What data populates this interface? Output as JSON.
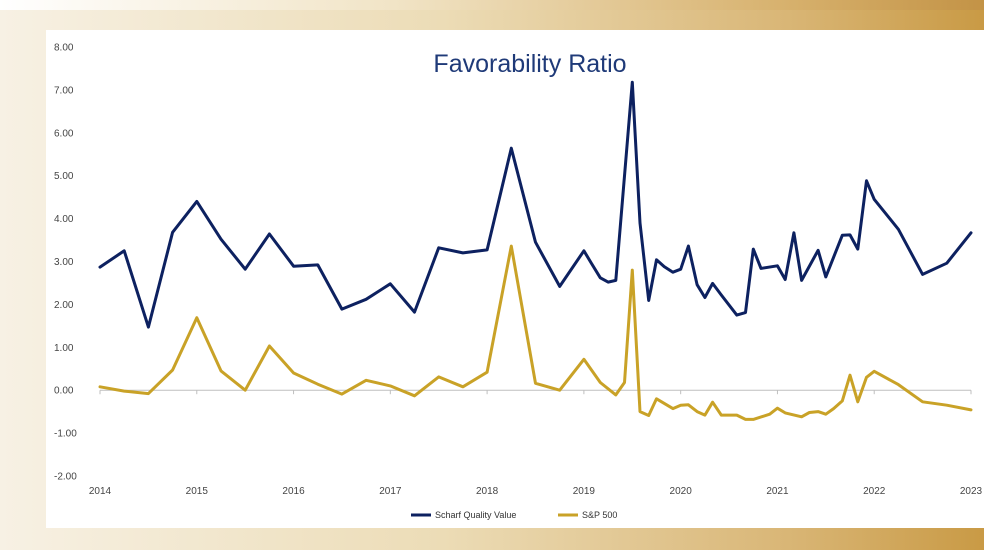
{
  "chart_data": {
    "type": "line",
    "title": "Favorability Ratio",
    "xlim": [
      2014,
      2023
    ],
    "ylim": [
      -2,
      8
    ],
    "x_ticks": [
      "2014",
      "2015",
      "2016",
      "2017",
      "2018",
      "2019",
      "2020",
      "2021",
      "2022",
      "2023"
    ],
    "y_ticks": [
      "8.00",
      "7.00",
      "6.00",
      "5.00",
      "4.00",
      "3.00",
      "2.00",
      "1.00",
      "0.00",
      "-1.00",
      "-2.00"
    ],
    "legend_position": "bottom-center",
    "series": [
      {
        "name": "Scharf Quality Value",
        "color": "#0d2160",
        "points": [
          [
            2014.0,
            2.87
          ],
          [
            2014.25,
            3.25
          ],
          [
            2014.5,
            1.47
          ],
          [
            2014.75,
            3.68
          ],
          [
            2015.0,
            4.4
          ],
          [
            2015.25,
            3.52
          ],
          [
            2015.5,
            2.82
          ],
          [
            2015.75,
            3.64
          ],
          [
            2016.0,
            2.89
          ],
          [
            2016.25,
            2.92
          ],
          [
            2016.5,
            1.89
          ],
          [
            2016.75,
            2.12
          ],
          [
            2017.0,
            2.48
          ],
          [
            2017.25,
            1.82
          ],
          [
            2017.5,
            3.32
          ],
          [
            2017.75,
            3.2
          ],
          [
            2018.0,
            3.27
          ],
          [
            2018.25,
            5.64
          ],
          [
            2018.5,
            3.45
          ],
          [
            2018.75,
            2.42
          ],
          [
            2019.0,
            3.25
          ],
          [
            2019.08,
            2.95
          ],
          [
            2019.17,
            2.62
          ],
          [
            2019.25,
            2.52
          ],
          [
            2019.33,
            2.56
          ],
          [
            2019.5,
            7.18
          ],
          [
            2019.58,
            3.9
          ],
          [
            2019.67,
            2.09
          ],
          [
            2019.75,
            3.04
          ],
          [
            2019.83,
            2.88
          ],
          [
            2019.92,
            2.75
          ],
          [
            2020.0,
            2.82
          ],
          [
            2020.08,
            3.36
          ],
          [
            2020.17,
            2.46
          ],
          [
            2020.25,
            2.16
          ],
          [
            2020.33,
            2.49
          ],
          [
            2020.42,
            2.22
          ],
          [
            2020.58,
            1.75
          ],
          [
            2020.67,
            1.81
          ],
          [
            2020.75,
            3.29
          ],
          [
            2020.83,
            2.84
          ],
          [
            2021.0,
            2.9
          ],
          [
            2021.08,
            2.58
          ],
          [
            2021.17,
            3.67
          ],
          [
            2021.25,
            2.56
          ],
          [
            2021.42,
            3.26
          ],
          [
            2021.5,
            2.64
          ],
          [
            2021.67,
            3.61
          ],
          [
            2021.75,
            3.62
          ],
          [
            2021.83,
            3.29
          ],
          [
            2021.92,
            4.88
          ],
          [
            2022.0,
            4.45
          ],
          [
            2022.25,
            3.75
          ],
          [
            2022.5,
            2.7
          ],
          [
            2022.75,
            2.96
          ],
          [
            2023.0,
            3.67
          ]
        ]
      },
      {
        "name": "S&P 500",
        "color": "#c9a227",
        "points": [
          [
            2014.0,
            0.08
          ],
          [
            2014.25,
            -0.02
          ],
          [
            2014.5,
            -0.08
          ],
          [
            2014.75,
            0.47
          ],
          [
            2015.0,
            1.69
          ],
          [
            2015.25,
            0.45
          ],
          [
            2015.5,
            0.0
          ],
          [
            2015.75,
            1.03
          ],
          [
            2016.0,
            0.4
          ],
          [
            2016.25,
            0.14
          ],
          [
            2016.5,
            -0.09
          ],
          [
            2016.75,
            0.23
          ],
          [
            2017.0,
            0.1
          ],
          [
            2017.25,
            -0.13
          ],
          [
            2017.5,
            0.31
          ],
          [
            2017.75,
            0.08
          ],
          [
            2018.0,
            0.42
          ],
          [
            2018.25,
            3.36
          ],
          [
            2018.5,
            0.16
          ],
          [
            2018.75,
            0.0
          ],
          [
            2019.0,
            0.72
          ],
          [
            2019.17,
            0.18
          ],
          [
            2019.33,
            -0.11
          ],
          [
            2019.42,
            0.18
          ],
          [
            2019.5,
            2.8
          ],
          [
            2019.58,
            -0.5
          ],
          [
            2019.67,
            -0.59
          ],
          [
            2019.75,
            -0.2
          ],
          [
            2019.92,
            -0.43
          ],
          [
            2020.0,
            -0.35
          ],
          [
            2020.08,
            -0.34
          ],
          [
            2020.17,
            -0.5
          ],
          [
            2020.25,
            -0.58
          ],
          [
            2020.33,
            -0.28
          ],
          [
            2020.42,
            -0.58
          ],
          [
            2020.58,
            -0.58
          ],
          [
            2020.67,
            -0.68
          ],
          [
            2020.75,
            -0.68
          ],
          [
            2020.92,
            -0.56
          ],
          [
            2021.0,
            -0.42
          ],
          [
            2021.08,
            -0.53
          ],
          [
            2021.25,
            -0.62
          ],
          [
            2021.33,
            -0.52
          ],
          [
            2021.42,
            -0.5
          ],
          [
            2021.5,
            -0.56
          ],
          [
            2021.58,
            -0.43
          ],
          [
            2021.67,
            -0.25
          ],
          [
            2021.75,
            0.35
          ],
          [
            2021.83,
            -0.27
          ],
          [
            2021.92,
            0.3
          ],
          [
            2022.0,
            0.44
          ],
          [
            2022.25,
            0.13
          ],
          [
            2022.5,
            -0.27
          ],
          [
            2022.75,
            -0.35
          ],
          [
            2023.0,
            -0.46
          ]
        ]
      }
    ]
  }
}
